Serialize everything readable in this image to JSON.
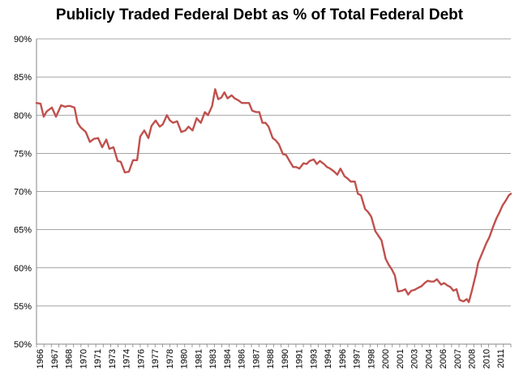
{
  "chart_data": {
    "type": "line",
    "title": "Publicly Traded Federal Debt as % of Total Federal Debt",
    "xlabel": "",
    "ylabel": "",
    "x_range": [
      1966.0,
      2012.2
    ],
    "ylim": [
      50,
      90
    ],
    "y_ticks": [
      {
        "value": 50,
        "label": "50%"
      },
      {
        "value": 55,
        "label": "55%"
      },
      {
        "value": 60,
        "label": "60%"
      },
      {
        "value": 65,
        "label": "65%"
      },
      {
        "value": 70,
        "label": "70%"
      },
      {
        "value": 75,
        "label": "75%"
      },
      {
        "value": 80,
        "label": "80%"
      },
      {
        "value": 85,
        "label": "85%"
      },
      {
        "value": 90,
        "label": "90%"
      }
    ],
    "x_tick_labels": [
      "1966",
      "1967",
      "1968",
      "1970",
      "1971",
      "1973",
      "1974",
      "1976",
      "1977",
      "1978",
      "1980",
      "1981",
      "1983",
      "1984",
      "1986",
      "1987",
      "1988",
      "1990",
      "1991",
      "1993",
      "1994",
      "1996",
      "1997",
      "1998",
      "2000",
      "2001",
      "2003",
      "2004",
      "2006",
      "2007",
      "2008",
      "2010",
      "2011"
    ],
    "grid": "horizontal",
    "legend": "none",
    "line_color": "#c0504d",
    "series": [
      {
        "x": [
          1966.0,
          1966.4,
          1966.7,
          1967.0,
          1967.5,
          1967.9,
          1968.4,
          1968.8,
          1969.0,
          1969.3,
          1969.7,
          1970.0,
          1970.3,
          1970.8,
          1971.2,
          1971.6,
          1972.0,
          1972.4,
          1972.8,
          1973.1,
          1973.5,
          1973.9,
          1974.2,
          1974.6,
          1975.0,
          1975.4,
          1975.8,
          1976.1,
          1976.5,
          1976.9,
          1977.2,
          1977.6,
          1978.0,
          1978.3,
          1978.7,
          1979.0,
          1979.3,
          1979.7,
          1980.1,
          1980.5,
          1980.8,
          1981.2,
          1981.6,
          1982.0,
          1982.4,
          1982.7,
          1983.1,
          1983.4,
          1983.7,
          1984.0,
          1984.3,
          1984.6,
          1985.0,
          1985.3,
          1985.6,
          1986.0,
          1986.3,
          1986.7,
          1987.0,
          1987.4,
          1987.7,
          1988.0,
          1988.3,
          1988.6,
          1989.0,
          1989.3,
          1989.6,
          1990.0,
          1990.3,
          1990.6,
          1991.0,
          1991.3,
          1991.6,
          1992.0,
          1992.3,
          1992.6,
          1993.0,
          1993.3,
          1993.6,
          1994.0,
          1994.3,
          1994.6,
          1995.0,
          1995.3,
          1995.6,
          1996.0,
          1996.3,
          1996.6,
          1997.0,
          1997.3,
          1997.6,
          1998.0,
          1998.3,
          1998.6,
          1999.0,
          1999.3,
          1999.6,
          2000.0,
          2000.3,
          2000.6,
          2000.9,
          2001.2,
          2001.6,
          2001.9,
          2002.2,
          2002.5,
          2002.8,
          2003.2,
          2003.5,
          2003.8,
          2004.1,
          2004.4,
          2004.7,
          2005.0,
          2005.4,
          2005.7,
          2006.0,
          2006.3,
          2006.6,
          2006.9,
          2007.2,
          2007.6,
          2007.9,
          2008.1,
          2008.4,
          2008.8,
          2009.0,
          2009.4,
          2009.8,
          2010.1,
          2010.5,
          2010.8,
          2011.1,
          2011.4,
          2011.7,
          2012.0,
          2012.2
        ],
        "y": [
          81.6,
          81.5,
          79.8,
          80.5,
          81.0,
          79.8,
          81.3,
          81.1,
          81.2,
          81.2,
          81.0,
          79.0,
          78.4,
          77.8,
          76.5,
          76.9,
          77.0,
          75.8,
          76.8,
          75.6,
          75.8,
          74.0,
          73.9,
          72.5,
          72.6,
          74.1,
          74.1,
          77.2,
          78.0,
          77.0,
          78.6,
          79.3,
          78.5,
          78.8,
          80.0,
          79.3,
          79.0,
          79.2,
          77.8,
          78.0,
          78.5,
          78.0,
          79.6,
          79.0,
          80.4,
          80.0,
          81.2,
          83.4,
          82.1,
          82.3,
          83.0,
          82.2,
          82.6,
          82.2,
          82.0,
          81.6,
          81.6,
          81.6,
          80.6,
          80.4,
          80.4,
          79.0,
          79.0,
          78.5,
          77.0,
          76.7,
          76.2,
          74.9,
          74.8,
          74.1,
          73.2,
          73.2,
          73.0,
          73.7,
          73.6,
          74.0,
          74.2,
          73.6,
          74.0,
          73.6,
          73.2,
          73.0,
          72.6,
          72.2,
          73.0,
          72.0,
          71.7,
          71.3,
          71.3,
          69.7,
          69.5,
          67.7,
          67.3,
          66.7,
          64.8,
          64.2,
          63.6,
          61.2,
          60.4,
          59.8,
          59.0,
          56.9,
          57.0,
          57.2,
          56.5,
          57.0,
          57.1,
          57.4,
          57.6,
          58.0,
          58.3,
          58.2,
          58.2,
          58.5,
          57.8,
          58.0,
          57.7,
          57.5,
          57.0,
          57.2,
          55.8,
          55.6,
          55.9,
          55.5,
          57.0,
          59.2,
          60.6,
          61.9,
          63.2,
          64.0,
          65.5,
          66.5,
          67.3,
          68.2,
          68.8,
          69.5,
          69.7
        ]
      }
    ]
  }
}
